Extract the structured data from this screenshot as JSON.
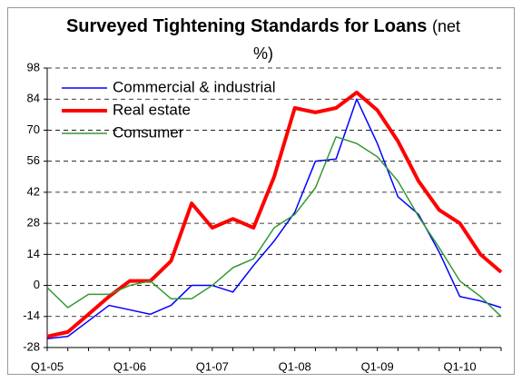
{
  "chart_data": {
    "type": "line",
    "title": "Surveyed Tightening Standards for Loans",
    "subtitle": "(net %)",
    "categories": [
      "Q1-05",
      null,
      null,
      null,
      "Q1-06",
      null,
      null,
      null,
      "Q1-07",
      null,
      null,
      null,
      "Q1-08",
      null,
      null,
      null,
      "Q1-09",
      null,
      null,
      null,
      "Q1-10",
      null,
      null
    ],
    "series": [
      {
        "name": "Commercial & industrial",
        "color": "#0000ff",
        "width": 1.5,
        "values": [
          -24,
          -23,
          -16,
          -9,
          -11,
          -13,
          -9,
          0,
          0,
          -3,
          9,
          20,
          33,
          56,
          57,
          84,
          64,
          40,
          32,
          15,
          -5,
          -7,
          -10
        ]
      },
      {
        "name": "Real estate",
        "color": "#ff0000",
        "width": 4,
        "values": [
          -23,
          -21,
          -13,
          -5,
          2,
          2,
          11,
          37,
          26,
          30,
          26,
          49,
          80,
          78,
          80,
          87,
          79,
          65,
          47,
          34,
          28,
          14,
          6
        ]
      },
      {
        "name": "Consumer",
        "color": "#339933",
        "width": 1.5,
        "values": [
          -1,
          -10,
          -4,
          -4,
          0,
          2,
          -6,
          -6,
          0,
          8,
          12,
          26,
          32,
          44,
          67,
          64,
          58,
          47,
          31,
          17,
          2,
          -5,
          -14
        ]
      }
    ],
    "ylim": [
      -28,
      98
    ],
    "yticks": [
      -28,
      -14,
      0,
      14,
      28,
      42,
      56,
      70,
      84,
      98
    ],
    "grid": true
  }
}
